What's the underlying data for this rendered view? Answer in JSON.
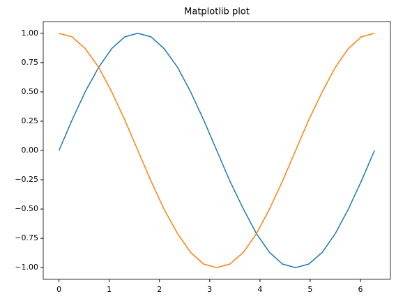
{
  "chart_data": {
    "type": "line",
    "title": "Matplotlib plot",
    "x": [
      0,
      0.26,
      0.52,
      0.79,
      1.05,
      1.31,
      1.57,
      1.83,
      2.09,
      2.36,
      2.62,
      2.88,
      3.14,
      3.4,
      3.67,
      3.93,
      4.19,
      4.45,
      4.71,
      4.97,
      5.24,
      5.5,
      5.76,
      6.02,
      6.28
    ],
    "series": [
      {
        "color": "#1f77b4",
        "values": [
          0,
          0.26,
          0.5,
          0.71,
          0.87,
          0.97,
          1,
          0.97,
          0.87,
          0.71,
          0.5,
          0.26,
          0,
          -0.26,
          -0.5,
          -0.71,
          -0.87,
          -0.97,
          -1,
          -0.97,
          -0.87,
          -0.71,
          -0.5,
          -0.26,
          0
        ]
      },
      {
        "color": "#ff7f0e",
        "values": [
          1,
          0.97,
          0.87,
          0.71,
          0.5,
          0.26,
          0,
          -0.26,
          -0.5,
          -0.71,
          -0.87,
          -0.97,
          -1,
          -0.97,
          -0.87,
          -0.71,
          -0.5,
          -0.26,
          0,
          0.26,
          0.5,
          0.71,
          0.87,
          0.97,
          1
        ]
      }
    ],
    "xlim": [
      -0.314,
      6.597
    ],
    "ylim": [
      -1.1,
      1.1
    ],
    "xticks": [
      0,
      1,
      2,
      3,
      4,
      5,
      6
    ],
    "yticks": [
      {
        "value": -1,
        "label": "−1.00"
      },
      {
        "value": -0.75,
        "label": "−0.75"
      },
      {
        "value": -0.5,
        "label": "−0.50"
      },
      {
        "value": -0.25,
        "label": "−0.25"
      },
      {
        "value": 0,
        "label": "0.00"
      },
      {
        "value": 0.25,
        "label": "0.25"
      },
      {
        "value": 0.5,
        "label": "0.50"
      },
      {
        "value": 0.75,
        "label": "0.75"
      },
      {
        "value": 1,
        "label": "1.00"
      }
    ],
    "grid": false
  }
}
